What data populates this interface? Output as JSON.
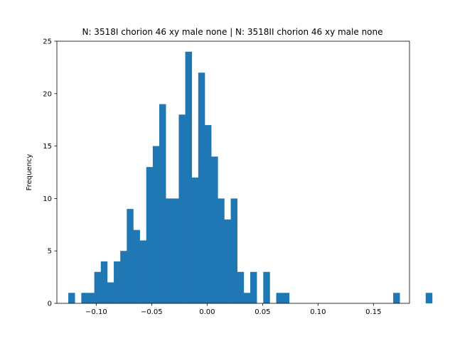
{
  "chart_data": {
    "type": "bar",
    "title": "N: 3518I chorion 46 xy male none | N: 3518II chorion 46 xy male none",
    "xlabel": "",
    "ylabel": "Frequency",
    "xlim": [
      -0.1355,
      0.1825
    ],
    "ylim": [
      0,
      25
    ],
    "bin_start": -0.1252,
    "bin_width": 0.00586,
    "counts": [
      1,
      0,
      1,
      1,
      3,
      4,
      2,
      4,
      5,
      9,
      7,
      6,
      13,
      15,
      19,
      10,
      10,
      18,
      24,
      12,
      22,
      17,
      14,
      10,
      8,
      10,
      3,
      1,
      3,
      0,
      3,
      0,
      1,
      1,
      0,
      0,
      0,
      0,
      0,
      0,
      0,
      0,
      0,
      0,
      0,
      0,
      0,
      0,
      0,
      0,
      1,
      0,
      0,
      0,
      0,
      1
    ],
    "x_ticks": [
      "−0.10",
      "−0.05",
      "0.00",
      "0.05",
      "0.10",
      "0.15"
    ],
    "x_tick_values": [
      -0.1,
      -0.05,
      0.0,
      0.05,
      0.1,
      0.15
    ],
    "y_ticks": [
      "0",
      "5",
      "10",
      "15",
      "20",
      "25"
    ],
    "y_tick_values": [
      0,
      5,
      10,
      15,
      20,
      25
    ],
    "bar_color": "#1f77b4"
  }
}
